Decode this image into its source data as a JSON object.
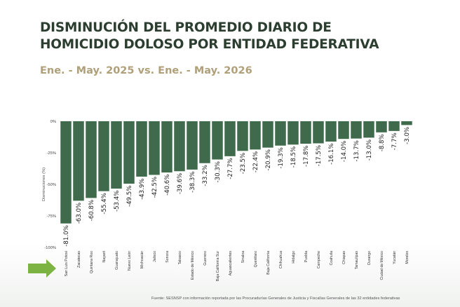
{
  "header": {
    "title_line1": "DISMINUCIÓN DEL PROMEDIO DIARIO DE",
    "title_line2": "HOMICIDIO DOLOSO POR ENTIDAD FEDERATIVA",
    "subtitle": "Ene. - May. 2025 vs. Ene. - May. 2026"
  },
  "footer": {
    "source": "Fuente: SESNSP con información reportada por las Procuradurías Generales de Justicia y Fiscalías Generales de las 32 entidades federativas"
  },
  "colors": {
    "bar": "#3f6b4c",
    "highlight_arrow": "#7cb342",
    "title": "#2c3e2f",
    "subtitle": "#b0a07a"
  },
  "chart_data": {
    "type": "bar",
    "ylabel": "Disminuciones (%)",
    "ylim": [
      -100,
      0
    ],
    "yticks": [
      0,
      -25,
      -50,
      -75,
      -100
    ],
    "ytick_labels": [
      "0%",
      "-25%",
      "-50%",
      "-75%",
      "-100%"
    ],
    "grid": false,
    "highlighted_category": "San Luis Potosí",
    "categories": [
      "San Luis Potosí",
      "Zacatecas",
      "Quintana Roo",
      "Nayarit",
      "Guanajuato",
      "Nuevo León",
      "Michoacán",
      "Jalisco",
      "Sonora",
      "Tabasco",
      "Estado de México",
      "Guerrero",
      "Baja California Sur",
      "Aguascalientes",
      "Sinaloa",
      "Querétaro",
      "Baja California",
      "Chihuahua",
      "Hidalgo",
      "Puebla",
      "Campeche",
      "Coahuila",
      "Chiapas",
      "Tamaulipas",
      "Durango",
      "Ciudad de México",
      "Yucatán",
      "Morelos"
    ],
    "values": [
      -81.0,
      -63.0,
      -60.8,
      -55.4,
      -53.4,
      -49.5,
      -43.9,
      -42.5,
      -40.6,
      -39.6,
      -38.3,
      -33.2,
      -30.3,
      -27.7,
      -23.5,
      -22.4,
      -20.9,
      -19.3,
      -18.5,
      -17.8,
      -17.5,
      -16.1,
      -14.0,
      -13.7,
      -13.0,
      -8.8,
      -7.7,
      -3.0
    ],
    "value_labels": [
      "-81.0%",
      "-63.0%",
      "-60.8%",
      "-55.4%",
      "-53.4%",
      "-49.5%",
      "-43.9%",
      "-42.5%",
      "-40.6%",
      "-39.6%",
      "-38.3%",
      "-33.2%",
      "-30.3%",
      "-27.7%",
      "-23.5%",
      "-22.4%",
      "-20.9%",
      "-19.3%",
      "-18.5%",
      "-17.8%",
      "-17.5%",
      "-16.1%",
      "-14.0%",
      "-13.7%",
      "-13.0%",
      "-8.8%",
      "-7.7%",
      "-3.0%"
    ]
  }
}
